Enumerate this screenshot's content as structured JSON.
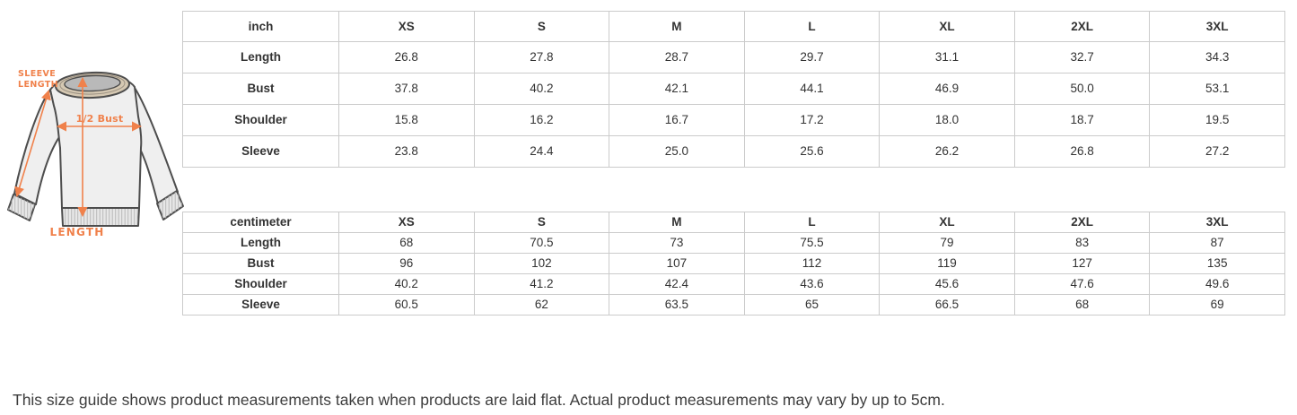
{
  "diagram": {
    "sleeve_label_line1": "SLEEVE",
    "sleeve_label_line2": "LENGTH",
    "half_bust_label": "1/2 Bust",
    "length_label": "LENGTH",
    "colors": {
      "annotation_orange": "#f0814b",
      "garment_fill": "#efefef",
      "garment_outline": "#4d4d4d",
      "collar_rib_tan": "#d5c8b2",
      "table_border": "#cbcbcb",
      "table_text": "#333333"
    }
  },
  "tables": [
    {
      "unit_label": "inch",
      "columns": [
        "XS",
        "S",
        "M",
        "L",
        "XL",
        "2XL",
        "3XL"
      ],
      "rows": [
        {
          "label": "Length",
          "values": [
            "26.8",
            "27.8",
            "28.7",
            "29.7",
            "31.1",
            "32.7",
            "34.3"
          ]
        },
        {
          "label": "Bust",
          "values": [
            "37.8",
            "40.2",
            "42.1",
            "44.1",
            "46.9",
            "50.0",
            "53.1"
          ]
        },
        {
          "label": "Shoulder",
          "values": [
            "15.8",
            "16.2",
            "16.7",
            "17.2",
            "18.0",
            "18.7",
            "19.5"
          ]
        },
        {
          "label": "Sleeve",
          "values": [
            "23.8",
            "24.4",
            "25.0",
            "25.6",
            "26.2",
            "26.8",
            "27.2"
          ]
        }
      ]
    },
    {
      "unit_label": "centimeter",
      "columns": [
        "XS",
        "S",
        "M",
        "L",
        "XL",
        "2XL",
        "3XL"
      ],
      "rows": [
        {
          "label": "Length",
          "values": [
            "68",
            "70.5",
            "73",
            "75.5",
            "79",
            "83",
            "87"
          ]
        },
        {
          "label": "Bust",
          "values": [
            "96",
            "102",
            "107",
            "112",
            "119",
            "127",
            "135"
          ]
        },
        {
          "label": "Shoulder",
          "values": [
            "40.2",
            "41.2",
            "42.4",
            "43.6",
            "45.6",
            "47.6",
            "49.6"
          ]
        },
        {
          "label": "Sleeve",
          "values": [
            "60.5",
            "62",
            "63.5",
            "65",
            "66.5",
            "68",
            "69"
          ]
        }
      ]
    }
  ],
  "footer": {
    "note": "This size guide shows product measurements taken when products are laid flat. Actual product measurements may vary by up to 5cm."
  }
}
